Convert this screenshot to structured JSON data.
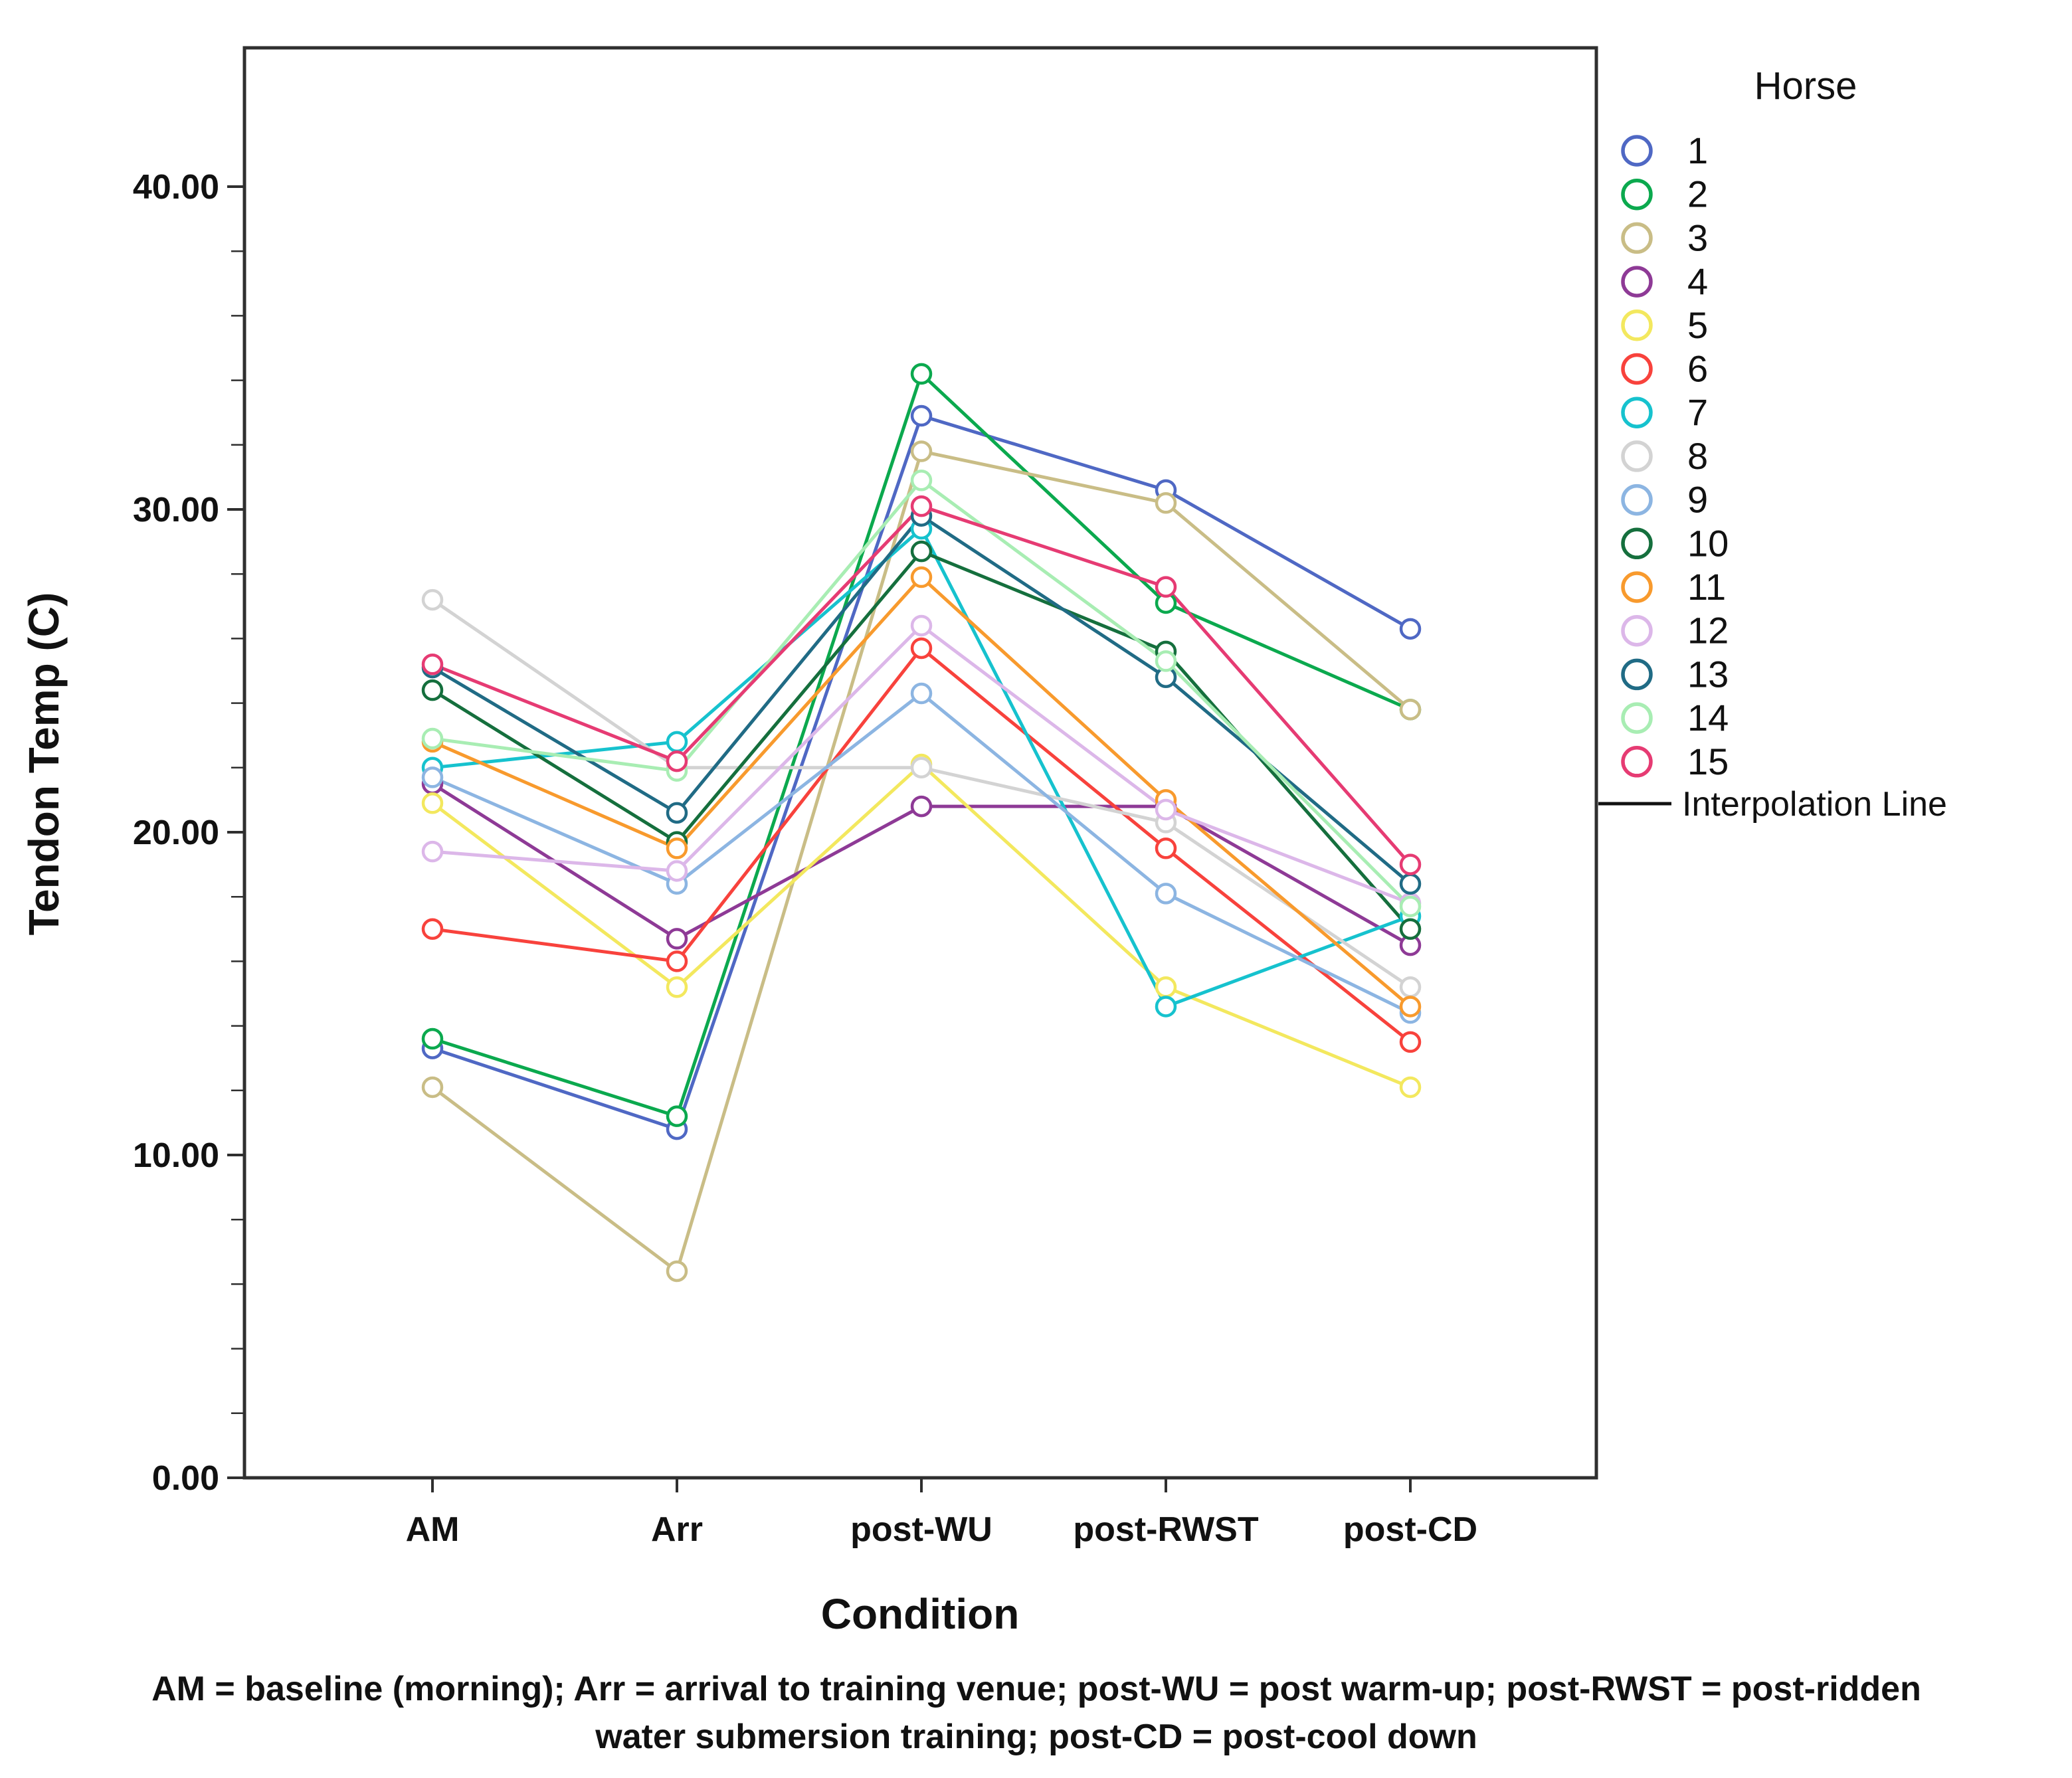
{
  "chart_data": {
    "type": "line",
    "title": "",
    "xlabel": "Condition",
    "ylabel": "Tendon Temp (C)",
    "categories": [
      "AM",
      "Arr",
      "post-WU",
      "post-RWST",
      "post-CD"
    ],
    "ylim": [
      0,
      40
    ],
    "ytick_values": [
      0,
      10,
      20,
      30,
      40
    ],
    "ytick_labels": [
      "0.00",
      "10.00",
      "20.00",
      "30.00",
      "40.00"
    ],
    "yminor_step": 2,
    "grid": false,
    "legend_position": "right",
    "legend_title": "Horse",
    "interpolation_label": "Interpolation Line",
    "frame_color": "#2f2f2f",
    "series": [
      {
        "name": "1",
        "color": "#4f68c4",
        "values": [
          13.3,
          10.8,
          32.9,
          30.6,
          26.3
        ]
      },
      {
        "name": "2",
        "color": "#0ba94e",
        "values": [
          13.6,
          11.2,
          34.2,
          27.1,
          23.8
        ]
      },
      {
        "name": "3",
        "color": "#c9bd86",
        "values": [
          12.1,
          6.4,
          31.8,
          30.2,
          23.8
        ]
      },
      {
        "name": "4",
        "color": "#8e3a96",
        "values": [
          21.5,
          16.7,
          20.8,
          20.8,
          16.5
        ]
      },
      {
        "name": "5",
        "color": "#f3e85e",
        "values": [
          20.9,
          15.2,
          22.1,
          15.2,
          12.1
        ]
      },
      {
        "name": "6",
        "color": "#f8423c",
        "values": [
          17.0,
          16.0,
          25.7,
          19.5,
          13.5
        ]
      },
      {
        "name": "7",
        "color": "#16c2ce",
        "values": [
          22.0,
          22.8,
          29.4,
          14.6,
          17.4
        ]
      },
      {
        "name": "8",
        "color": "#d3d3d3",
        "values": [
          27.2,
          22.0,
          22.0,
          20.3,
          15.2
        ]
      },
      {
        "name": "9",
        "color": "#8cb5e2",
        "values": [
          21.7,
          18.4,
          24.3,
          18.1,
          14.4
        ]
      },
      {
        "name": "10",
        "color": "#156f3d",
        "values": [
          24.4,
          19.7,
          28.7,
          25.6,
          17.0
        ]
      },
      {
        "name": "11",
        "color": "#f89a2d",
        "values": [
          22.8,
          19.5,
          27.9,
          21.0,
          14.6
        ]
      },
      {
        "name": "12",
        "color": "#dcb7e9",
        "values": [
          19.4,
          18.8,
          26.4,
          20.7,
          17.8
        ]
      },
      {
        "name": "13",
        "color": "#206b85",
        "values": [
          25.1,
          20.6,
          29.8,
          24.8,
          18.4
        ]
      },
      {
        "name": "14",
        "color": "#a8edb3",
        "values": [
          22.9,
          21.9,
          30.9,
          25.3,
          17.7
        ]
      },
      {
        "name": "15",
        "color": "#e63b73",
        "values": [
          25.2,
          22.2,
          30.1,
          27.6,
          19.0
        ]
      }
    ],
    "caption_line1": "AM = baseline (morning); Arr = arrival to training venue; post-WU = post warm-up; post-RWST = post-ridden",
    "caption_line2": "water submersion training; post-CD = post-cool down"
  }
}
